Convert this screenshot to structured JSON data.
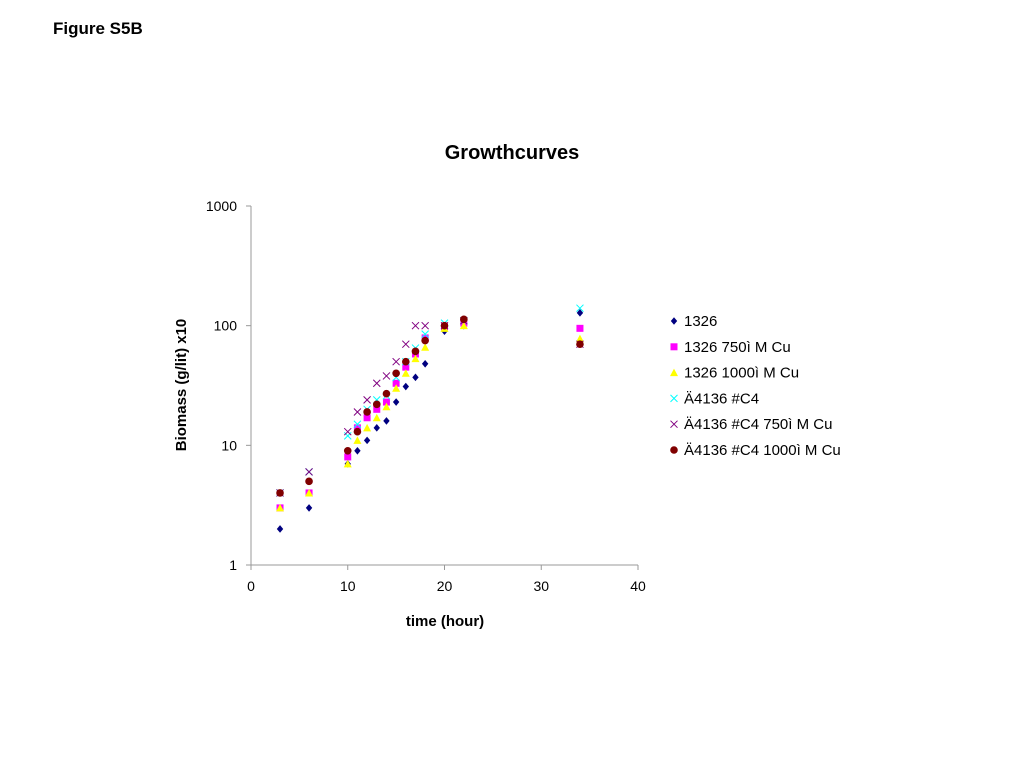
{
  "page": {
    "figure_label": "Figure S5B"
  },
  "chart_data": {
    "type": "scatter",
    "title": "Growthcurves",
    "xlabel": "time (hour)",
    "ylabel": "Biomass (g/lit) x10",
    "xlim": [
      0,
      40
    ],
    "ylim": [
      1,
      1000
    ],
    "y_scale": "log",
    "x_ticks": [
      "0",
      "10",
      "20",
      "30",
      "40"
    ],
    "y_ticks": [
      "1",
      "10",
      "100",
      "1000"
    ],
    "grid": false,
    "legend_position": "right",
    "series": [
      {
        "name": "1326",
        "marker": "diamond",
        "color": "#000080",
        "x": [
          3,
          6,
          10,
          11,
          12,
          13,
          14,
          15,
          16,
          17,
          18,
          20,
          22,
          34
        ],
        "y": [
          2,
          3,
          7,
          9,
          11,
          14,
          16,
          23,
          31,
          37,
          48,
          90,
          100,
          128
        ]
      },
      {
        "name": "1326 750ì M Cu",
        "marker": "square",
        "color": "#FF00FF",
        "x": [
          3,
          6,
          10,
          11,
          12,
          13,
          14,
          15,
          16,
          17,
          18,
          20,
          22,
          34
        ],
        "y": [
          3,
          4,
          8,
          14,
          17,
          20,
          23,
          33,
          45,
          58,
          79,
          98,
          105,
          95
        ]
      },
      {
        "name": "1326 1000ì M Cu",
        "marker": "triangle",
        "color": "#FFFF00",
        "x": [
          3,
          6,
          10,
          11,
          12,
          13,
          14,
          15,
          16,
          17,
          18,
          20,
          22,
          34
        ],
        "y": [
          3,
          4,
          7,
          11,
          14,
          17,
          21,
          30,
          40,
          53,
          66,
          95,
          100,
          78
        ]
      },
      {
        "name": "Ä4136 #C4",
        "marker": "x",
        "color": "#00FFFF",
        "x": [
          3,
          6,
          10,
          11,
          12,
          13,
          14,
          15,
          16,
          17,
          18,
          20,
          22,
          34
        ],
        "y": [
          4,
          6,
          12,
          15,
          20,
          24,
          26,
          37,
          50,
          65,
          85,
          105,
          110,
          140
        ]
      },
      {
        "name": "Ä4136 #C4 750ì M Cu",
        "marker": "x",
        "color": "#800080",
        "x": [
          3,
          6,
          10,
          11,
          12,
          13,
          14,
          15,
          16,
          17,
          18,
          20,
          22,
          34
        ],
        "y": [
          4,
          6,
          13,
          19,
          24,
          33,
          38,
          50,
          70,
          100,
          100,
          100,
          110,
          70
        ]
      },
      {
        "name": "Ä4136 #C4 1000ì M Cu",
        "marker": "circle",
        "color": "#800000",
        "x": [
          3,
          6,
          10,
          11,
          12,
          13,
          14,
          15,
          16,
          17,
          18,
          20,
          22,
          34
        ],
        "y": [
          4,
          5,
          9,
          13,
          19,
          22,
          27,
          40,
          50,
          61,
          75,
          100,
          113,
          70
        ]
      }
    ]
  }
}
